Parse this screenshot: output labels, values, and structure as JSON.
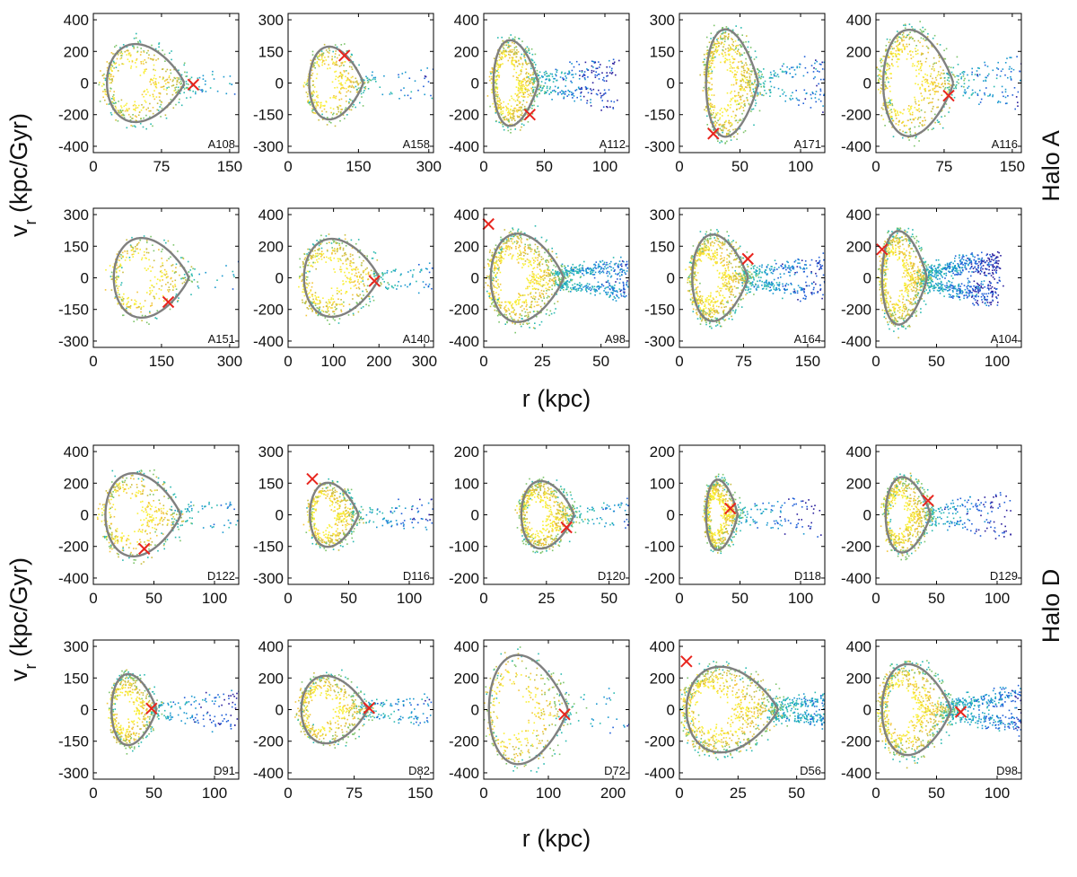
{
  "figure": {
    "ylabel_main": "v",
    "ylabel_sub": "r",
    "ylabel_unit": " (kpc/Gyr)",
    "xlabel": "r (kpc)",
    "halo_labels": [
      "Halo A",
      "Halo D"
    ],
    "colors": {
      "orbit": "#808080",
      "marker": "#e8251e",
      "axis": "#000000"
    },
    "colormap": [
      "#2a1f9e",
      "#1f5fd8",
      "#1a98cf",
      "#2bbab0",
      "#7cc46a",
      "#c9bd3f",
      "#f2c53a",
      "#f9ef36"
    ]
  },
  "chart_data": [
    {
      "type": "scatter",
      "label": "A108",
      "xlim": [
        0,
        160
      ],
      "xticks": [
        0,
        75,
        150
      ],
      "ylim": [
        -440,
        440
      ],
      "yticks": [
        -400,
        -200,
        0,
        200,
        400
      ],
      "orbit": {
        "rmin": 15,
        "rmax": 100,
        "vmax": 300
      },
      "marker": [
        110,
        -10
      ],
      "spread": 0.3,
      "density": 0.6
    },
    {
      "type": "scatter",
      "label": "A158",
      "xlim": [
        0,
        310
      ],
      "xticks": [
        0,
        150,
        300
      ],
      "ylim": [
        -330,
        330
      ],
      "yticks": [
        -300,
        -150,
        0,
        150,
        300
      ],
      "orbit": {
        "rmin": 45,
        "rmax": 160,
        "vmax": 210
      },
      "marker": [
        120,
        130
      ],
      "spread": 0.3,
      "density": 0.5
    },
    {
      "type": "scatter",
      "label": "A112",
      "xlim": [
        0,
        120
      ],
      "xticks": [
        0,
        50,
        100
      ],
      "ylim": [
        -440,
        440
      ],
      "yticks": [
        -400,
        -200,
        0,
        200,
        400
      ],
      "orbit": {
        "rmin": 8,
        "rmax": 45,
        "vmax": 330
      },
      "marker": [
        38,
        -200
      ],
      "spread": 0.6,
      "density": 1.0
    },
    {
      "type": "scatter",
      "label": "A171",
      "xlim": [
        0,
        120
      ],
      "xticks": [
        0,
        50,
        100
      ],
      "ylim": [
        -330,
        330
      ],
      "yticks": [
        -300,
        -150,
        0,
        150,
        300
      ],
      "orbit": {
        "rmin": 22,
        "rmax": 65,
        "vmax": 310
      },
      "marker": [
        28,
        -240
      ],
      "spread": 0.5,
      "density": 1.0
    },
    {
      "type": "scatter",
      "label": "A116",
      "xlim": [
        0,
        160
      ],
      "xticks": [
        0,
        75,
        150
      ],
      "ylim": [
        -440,
        440
      ],
      "yticks": [
        -400,
        -200,
        0,
        200,
        400
      ],
      "orbit": {
        "rmin": 8,
        "rmax": 85,
        "vmax": 410
      },
      "marker": [
        80,
        -80
      ],
      "spread": 0.5,
      "density": 0.9
    },
    {
      "type": "scatter",
      "label": "A151",
      "xlim": [
        0,
        320
      ],
      "xticks": [
        0,
        150,
        300
      ],
      "ylim": [
        -330,
        330
      ],
      "yticks": [
        -300,
        -150,
        0,
        150,
        300
      ],
      "orbit": {
        "rmin": 45,
        "rmax": 210,
        "vmax": 230
      },
      "marker": [
        165,
        -115
      ],
      "spread": 0.2,
      "density": 0.4
    },
    {
      "type": "scatter",
      "label": "A140",
      "xlim": [
        0,
        320
      ],
      "xticks": [
        0,
        100,
        200,
        300
      ],
      "ylim": [
        -440,
        440
      ],
      "yticks": [
        -400,
        -200,
        0,
        200,
        400
      ],
      "orbit": {
        "rmin": 35,
        "rmax": 200,
        "vmax": 300
      },
      "marker": [
        190,
        -20
      ],
      "spread": 0.5,
      "density": 0.7
    },
    {
      "type": "scatter",
      "label": "A98",
      "xlim": [
        0,
        62
      ],
      "xticks": [
        0,
        25,
        50
      ],
      "ylim": [
        -440,
        440
      ],
      "yticks": [
        -400,
        -200,
        0,
        200,
        400
      ],
      "orbit": {
        "rmin": 3,
        "rmax": 34,
        "vmax": 340
      },
      "marker": [
        2,
        340
      ],
      "spread": 0.9,
      "density": 1.6
    },
    {
      "type": "scatter",
      "label": "A164",
      "xlim": [
        0,
        170
      ],
      "xticks": [
        0,
        75,
        150
      ],
      "ylim": [
        -330,
        330
      ],
      "yticks": [
        -300,
        -150,
        0,
        150,
        300
      ],
      "orbit": {
        "rmin": 15,
        "rmax": 80,
        "vmax": 250
      },
      "marker": [
        80,
        90
      ],
      "spread": 0.7,
      "density": 1.3
    },
    {
      "type": "scatter",
      "label": "A104",
      "xlim": [
        0,
        120
      ],
      "xticks": [
        0,
        50,
        100
      ],
      "ylim": [
        -440,
        440
      ],
      "yticks": [
        -400,
        -200,
        0,
        200,
        400
      ],
      "orbit": {
        "rmin": 5,
        "rmax": 42,
        "vmax": 360
      },
      "marker": [
        5,
        180
      ],
      "spread": 1.0,
      "density": 1.6
    },
    {
      "type": "scatter",
      "label": "D122",
      "xlim": [
        0,
        120
      ],
      "xticks": [
        0,
        50,
        100
      ],
      "ylim": [
        -440,
        440
      ],
      "yticks": [
        -400,
        -200,
        0,
        200,
        400
      ],
      "orbit": {
        "rmin": 10,
        "rmax": 72,
        "vmax": 320
      },
      "marker": [
        42,
        -215
      ],
      "spread": 0.4,
      "density": 0.6
    },
    {
      "type": "scatter",
      "label": "D116",
      "xlim": [
        0,
        120
      ],
      "xticks": [
        0,
        50,
        100
      ],
      "ylim": [
        -330,
        330
      ],
      "yticks": [
        -300,
        -150,
        0,
        150,
        300
      ],
      "orbit": {
        "rmin": 18,
        "rmax": 58,
        "vmax": 185
      },
      "marker": [
        20,
        170
      ],
      "spread": 0.4,
      "density": 0.7
    },
    {
      "type": "scatter",
      "label": "D120",
      "xlim": [
        0,
        58
      ],
      "xticks": [
        0,
        25,
        50
      ],
      "ylim": [
        -220,
        220
      ],
      "yticks": [
        -200,
        -100,
        0,
        100,
        200
      ],
      "orbit": {
        "rmin": 15,
        "rmax": 36,
        "vmax": 130
      },
      "marker": [
        33,
        -40
      ],
      "spread": 0.4,
      "density": 0.9
    },
    {
      "type": "scatter",
      "label": "D118",
      "xlim": [
        0,
        120
      ],
      "xticks": [
        0,
        50,
        100
      ],
      "ylim": [
        -220,
        220
      ],
      "yticks": [
        -200,
        -100,
        0,
        100,
        200
      ],
      "orbit": {
        "rmin": 22,
        "rmax": 48,
        "vmax": 135
      },
      "marker": [
        42,
        20
      ],
      "spread": 0.3,
      "density": 0.9
    },
    {
      "type": "scatter",
      "label": "D129",
      "xlim": [
        0,
        120
      ],
      "xticks": [
        0,
        50,
        100
      ],
      "ylim": [
        -440,
        440
      ],
      "yticks": [
        -400,
        -200,
        0,
        200,
        400
      ],
      "orbit": {
        "rmin": 8,
        "rmax": 45,
        "vmax": 290
      },
      "marker": [
        43,
        90
      ],
      "spread": 0.5,
      "density": 0.9
    },
    {
      "type": "scatter",
      "label": "D91",
      "xlim": [
        0,
        120
      ],
      "xticks": [
        0,
        50,
        100
      ],
      "ylim": [
        -330,
        330
      ],
      "yticks": [
        -300,
        -150,
        0,
        150,
        300
      ],
      "orbit": {
        "rmin": 15,
        "rmax": 52,
        "vmax": 205
      },
      "marker": [
        48,
        5
      ],
      "spread": 0.5,
      "density": 0.7
    },
    {
      "type": "scatter",
      "label": "D82",
      "xlim": [
        0,
        165
      ],
      "xticks": [
        0,
        75,
        150
      ],
      "ylim": [
        -440,
        440
      ],
      "yticks": [
        -400,
        -200,
        0,
        200,
        400
      ],
      "orbit": {
        "rmin": 15,
        "rmax": 90,
        "vmax": 260
      },
      "marker": [
        92,
        10
      ],
      "spread": 0.5,
      "density": 0.8
    },
    {
      "type": "scatter",
      "label": "D72",
      "xlim": [
        0,
        225
      ],
      "xticks": [
        0,
        100,
        200
      ],
      "ylim": [
        -440,
        440
      ],
      "yticks": [
        -400,
        -200,
        0,
        200,
        400
      ],
      "orbit": {
        "rmin": 8,
        "rmax": 130,
        "vmax": 420
      },
      "marker": [
        125,
        -30
      ],
      "spread": 0.3,
      "density": 0.5
    },
    {
      "type": "scatter",
      "label": "D56",
      "xlim": [
        0,
        62
      ],
      "xticks": [
        0,
        25,
        50
      ],
      "ylim": [
        -440,
        440
      ],
      "yticks": [
        -400,
        -200,
        0,
        200,
        400
      ],
      "orbit": {
        "rmin": 3,
        "rmax": 42,
        "vmax": 330
      },
      "marker": [
        3,
        305
      ],
      "spread": 1.0,
      "density": 1.7
    },
    {
      "type": "scatter",
      "label": "D98",
      "xlim": [
        0,
        120
      ],
      "xticks": [
        0,
        50,
        100
      ],
      "ylim": [
        -440,
        440
      ],
      "yticks": [
        -400,
        -200,
        0,
        200,
        400
      ],
      "orbit": {
        "rmin": 5,
        "rmax": 62,
        "vmax": 350
      },
      "marker": [
        70,
        -15
      ],
      "spread": 0.9,
      "density": 1.5
    }
  ]
}
